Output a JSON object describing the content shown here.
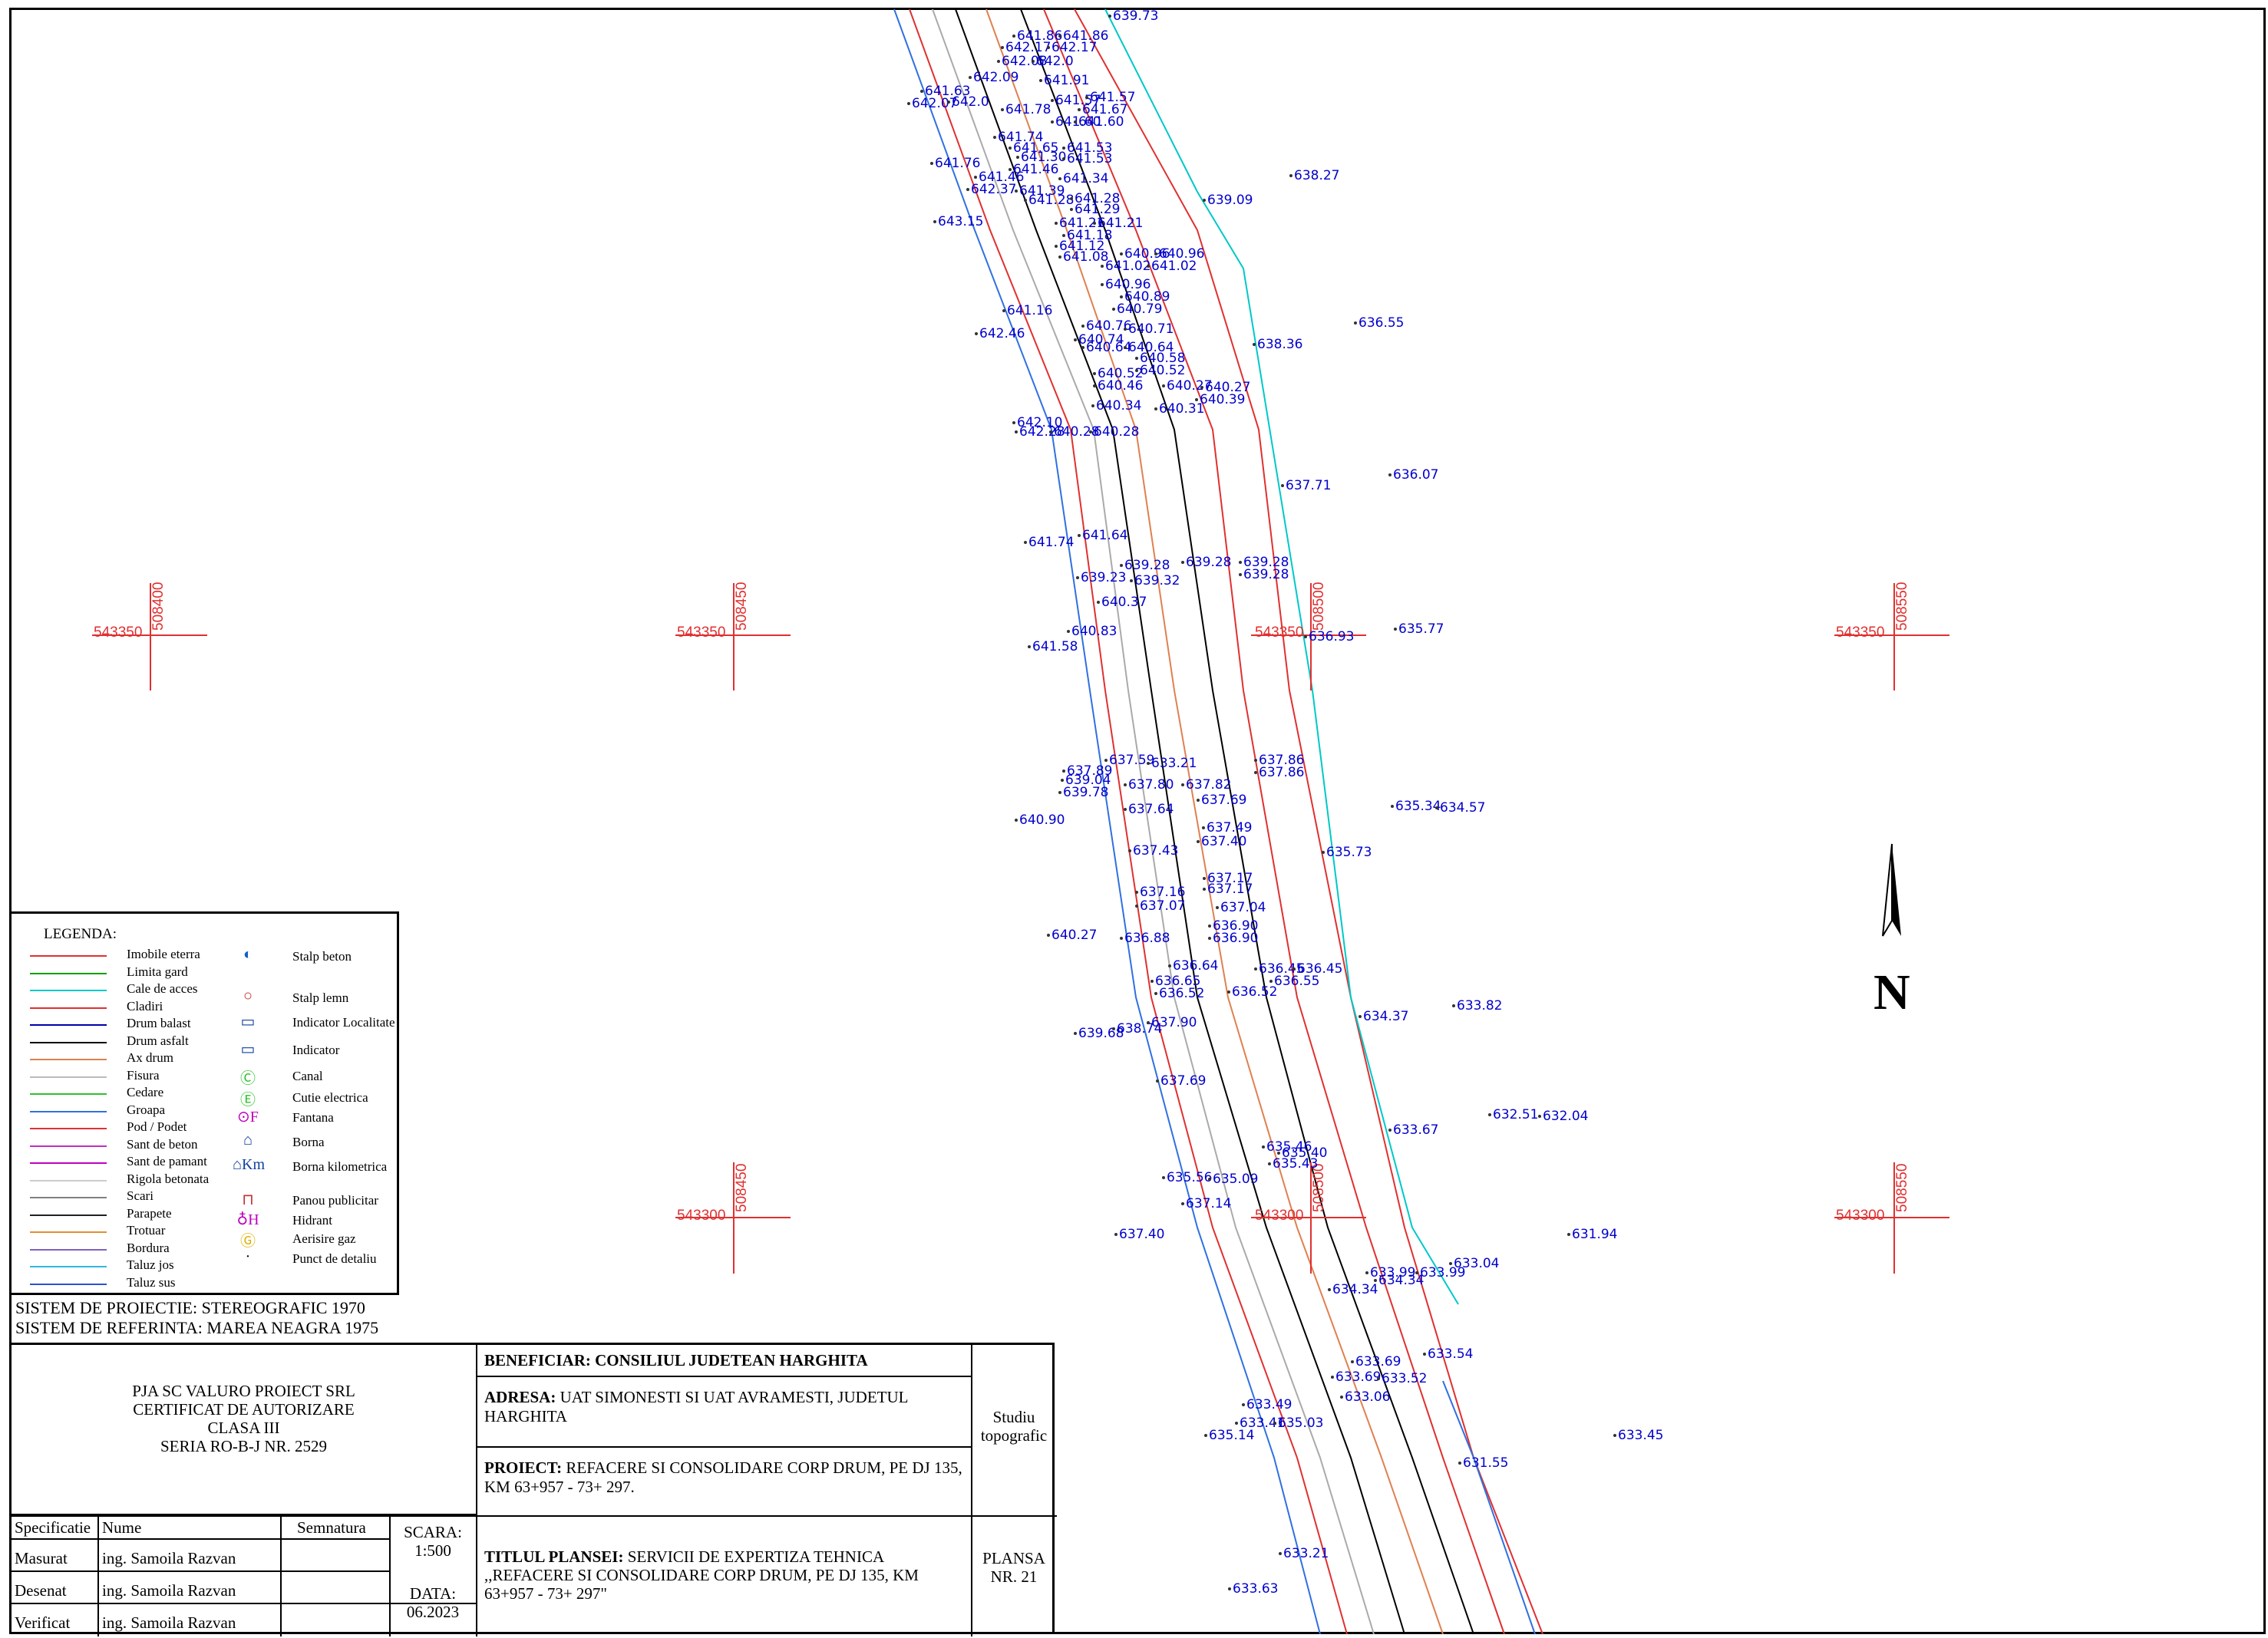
{
  "map": {
    "grid_labels": {
      "northing_top": "543350",
      "northing_bottom": "543300",
      "eastings": [
        "508400",
        "508450",
        "508500",
        "508550"
      ]
    },
    "north_label": "N",
    "spot_heights": [
      "639.73",
      "641.86",
      "641.86",
      "642.17",
      "642.17",
      "642.08",
      "642.0",
      "641.91",
      "642.09",
      "641.63",
      "642.07",
      "642.0",
      "641.78",
      "641.57",
      "641.57",
      "641.67",
      "641.60",
      "641.60",
      "641.74",
      "641.65",
      "641.30",
      "641.53",
      "641.53",
      "641.46",
      "641.46",
      "641.34",
      "641.76",
      "642.37",
      "641.39",
      "641.28",
      "641.28",
      "641.29",
      "643.15",
      "641.21",
      "641.21",
      "641.18",
      "641.12",
      "641.08",
      "640.96",
      "640.96",
      "641.02",
      "641.02",
      "640.96",
      "640.89",
      "640.79",
      "641.16",
      "640.76",
      "640.71",
      "642.46",
      "640.74",
      "640.64",
      "640.64",
      "640.58",
      "640.52",
      "640.52",
      "640.46",
      "640.27",
      "640.27",
      "640.34",
      "640.39",
      "640.31",
      "642.10",
      "642.28",
      "640.28",
      "640.28",
      "639.09",
      "638.27",
      "638.36",
      "636.55",
      "637.71",
      "636.07",
      "641.74",
      "641.64",
      "639.23",
      "639.28",
      "639.28",
      "639.28",
      "639.28",
      "639.32",
      "640.37",
      "640.83",
      "641.58",
      "636.93",
      "635.77",
      "637.59",
      "637.89",
      "637.86",
      "637.86",
      "639.04",
      "639.78",
      "637.80",
      "637.82",
      "637.69",
      "637.64",
      "640.90",
      "637.49",
      "637.40",
      "637.43",
      "635.34",
      "634.57",
      "635.73",
      "637.17",
      "637.17",
      "637.16",
      "637.07",
      "637.04",
      "636.90",
      "636.90",
      "640.27",
      "636.88",
      "636.64",
      "636.45",
      "636.45",
      "636.65",
      "636.55",
      "636.52",
      "636.52",
      "639.68",
      "638.74",
      "637.90",
      "634.37",
      "633.82",
      "637.69",
      "632.51",
      "632.04",
      "633.67",
      "635.46",
      "635.40",
      "635.43",
      "635.56",
      "635.09",
      "637.14",
      "637.40",
      "631.94",
      "633.99",
      "633.99",
      "633.04",
      "634.34",
      "634.34",
      "633.54",
      "633.69",
      "633.69",
      "633.52",
      "633.06",
      "633.49",
      "633.41",
      "635.14",
      "635.03",
      "633.45",
      "631.55",
      "633.21",
      "633.63",
      "633.21"
    ]
  },
  "legend": {
    "title": "LEGENDA:",
    "lines": [
      {
        "label": "Imobile eterra",
        "color": "#e03030"
      },
      {
        "label": "Limita gard",
        "color": "#00a000"
      },
      {
        "label": "Cale de acces",
        "color": "#00c8c8"
      },
      {
        "label": "Cladiri",
        "color": "#e03030"
      },
      {
        "label": "Drum balast",
        "color": "#0000aa"
      },
      {
        "label": "Drum asfalt",
        "color": "#000000"
      },
      {
        "label": "Ax drum",
        "color": "#e08050"
      },
      {
        "label": "Fisura",
        "color": "#bbbbbb"
      },
      {
        "label": "Cedare",
        "color": "#30c030"
      },
      {
        "label": "Groapa",
        "color": "#3070e0"
      },
      {
        "label": "Pod / Podet",
        "color": "#e03030"
      },
      {
        "label": "Sant de beton",
        "color": "#c030c0"
      },
      {
        "label": "Sant de pamant",
        "color": "#c000c0"
      },
      {
        "label": "Rigola betonata",
        "color": "#cccccc"
      },
      {
        "label": "Scari",
        "color": "#808080"
      },
      {
        "label": "Parapete",
        "color": "#202020"
      },
      {
        "label": "Trotuar",
        "color": "#e09030"
      },
      {
        "label": "Bordura",
        "color": "#8060c0"
      },
      {
        "label": "Taluz jos",
        "color": "#30b8e0"
      },
      {
        "label": "Taluz sus",
        "color": "#3050d0"
      }
    ],
    "symbols": [
      {
        "label": "Stalp beton",
        "icon": "concrete-pole-icon",
        "glyph": "◐",
        "color": "#1060d0"
      },
      {
        "label": "Stalp lemn",
        "icon": "wooden-pole-icon",
        "glyph": "○",
        "color": "#c03030"
      },
      {
        "label": "Indicator Localitate",
        "icon": "locality-sign-icon",
        "glyph": "▭",
        "color": "#1040a0"
      },
      {
        "label": "Indicator",
        "icon": "sign-icon",
        "glyph": "▭",
        "color": "#1040a0"
      },
      {
        "label": "Canal",
        "icon": "sewer-icon",
        "glyph": "Ⓒ",
        "color": "#30c030"
      },
      {
        "label": "Cutie electrica",
        "icon": "electric-box-icon",
        "glyph": "Ⓔ",
        "color": "#30c030"
      },
      {
        "label": "Fantana",
        "icon": "well-icon",
        "glyph": "⊙F",
        "color": "#c000c0"
      },
      {
        "label": "Borna",
        "icon": "landmark-icon",
        "glyph": "⌂",
        "color": "#1040a0"
      },
      {
        "label": "Borna kilometrica",
        "icon": "km-marker-icon",
        "glyph": "⌂Km",
        "color": "#1040a0"
      },
      {
        "label": "Panou publicitar",
        "icon": "billboard-icon",
        "glyph": "⊓",
        "color": "#c03030"
      },
      {
        "label": "Hidrant",
        "icon": "hydrant-icon",
        "glyph": "♁H",
        "color": "#c000c0"
      },
      {
        "label": "Aerisire gaz",
        "icon": "gas-vent-icon",
        "glyph": "Ⓖ",
        "color": "#e0b000"
      },
      {
        "label": "Punct de detaliu",
        "icon": "detail-point-icon",
        "glyph": "·",
        "color": "#000000"
      }
    ]
  },
  "projection": {
    "line1": "SISTEM DE PROIECTIE: STEREOGRAFIC 1970",
    "line2": "SISTEM DE REFERINTA: MAREA NEAGRA 1975"
  },
  "titleblock": {
    "company": [
      "PJA SC VALURO PROIECT SRL",
      "CERTIFICAT DE AUTORIZARE",
      "CLASA III",
      "SERIA RO-B-J NR. 2529"
    ],
    "beneficiar_label": "BENEFICIAR:",
    "beneficiar_value": "CONSILIUL JUDETEAN HARGHITA",
    "adresa_label": "ADRESA:",
    "adresa_value": "UAT SIMONESTI SI UAT AVRAMESTI, JUDETUL HARGHITA",
    "proiect_label": "PROIECT:",
    "proiect_value": "REFACERE SI CONSOLIDARE CORP DRUM, PE DJ 135, KM 63+957 - 73+ 297.",
    "titlu_label": "TITLUL PLANSEI:",
    "titlu_value": "SERVICII DE EXPERTIZA TEHNICA ,,REFACERE SI CONSOLIDARE CORP DRUM, PE DJ 135, KM 63+957 - 73+ 297\"",
    "study": "Studiu topografic",
    "plansa": "PLANSA NR. 21",
    "headers": {
      "spec": "Specificatie",
      "name": "Nume",
      "sign": "Semnatura"
    },
    "rows": [
      {
        "spec": "Masurat",
        "name": "ing. Samoila Razvan"
      },
      {
        "spec": "Desenat",
        "name": "ing. Samoila Razvan"
      },
      {
        "spec": "Verificat",
        "name": "ing. Samoila Razvan"
      }
    ],
    "scale_label": "SCARA:",
    "scale_value": "1:500",
    "date_label": "DATA:",
    "date_value": "06.2023"
  }
}
